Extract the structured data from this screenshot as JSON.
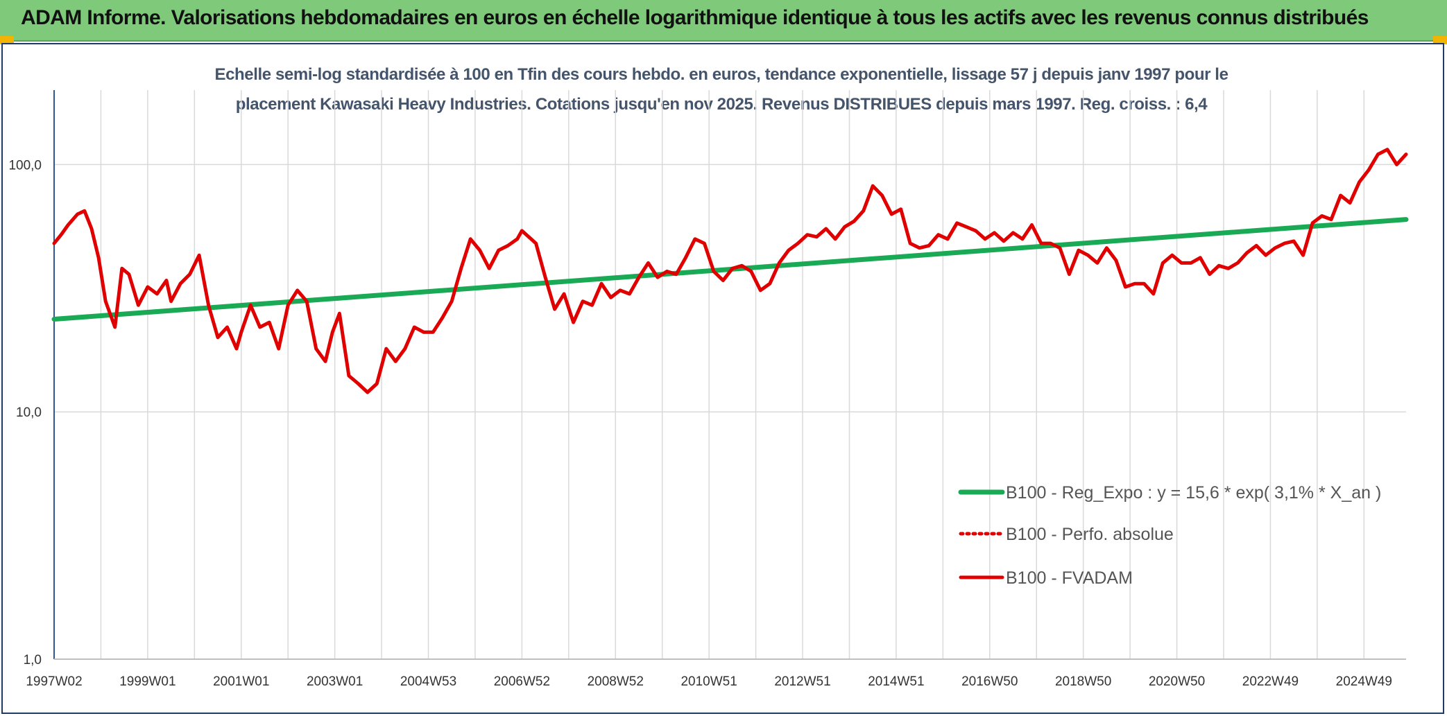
{
  "banner": {
    "title": "ADAM Informe. Valorisations hebdomadaires en euros en échelle logarithmique identique à tous les actifs avec les revenus connus distribués"
  },
  "chart_data": {
    "type": "line",
    "subtitle_line1": "Echelle semi-log standardisée à 100 en Tfin des cours hebdo. en euros, tendance exponentielle, lissage 57 j depuis janv 1997 pour le",
    "subtitle_line2": "placement Kawasaki Heavy Industries. Cotations jusqu'en nov 2025. Revenus DISTRIBUES depuis mars 1997. Reg. croiss. : 6,4",
    "y_scale": "log",
    "ylim": [
      1,
      200
    ],
    "y_ticks": [
      {
        "value": 1,
        "label": "1,0"
      },
      {
        "value": 10,
        "label": "10,0"
      },
      {
        "value": 100,
        "label": "100,0"
      }
    ],
    "xlim": [
      1997.0,
      2025.9
    ],
    "x_ticks": [
      {
        "value": 1997.0,
        "label": "1997W02"
      },
      {
        "value": 1999.0,
        "label": "1999W01"
      },
      {
        "value": 2001.0,
        "label": "2001W01"
      },
      {
        "value": 2003.0,
        "label": "2003W01"
      },
      {
        "value": 2005.0,
        "label": "2004W53"
      },
      {
        "value": 2007.0,
        "label": "2006W52"
      },
      {
        "value": 2009.0,
        "label": "2008W52"
      },
      {
        "value": 2011.0,
        "label": "2010W51"
      },
      {
        "value": 2013.0,
        "label": "2012W51"
      },
      {
        "value": 2015.0,
        "label": "2014W51"
      },
      {
        "value": 2017.0,
        "label": "2016W50"
      },
      {
        "value": 2019.0,
        "label": "2018W50"
      },
      {
        "value": 2021.0,
        "label": "2020W50"
      },
      {
        "value": 2023.0,
        "label": "2022W49"
      },
      {
        "value": 2025.0,
        "label": "2024W49"
      }
    ],
    "grid": true,
    "legend_position": "bottom-right",
    "series": [
      {
        "name": "B100 - Reg_Expo : y = 15,6 * exp( 3,1% *  X_an )",
        "color": "#1aaa55",
        "style": "solid",
        "x": [
          1997.0,
          2025.9
        ],
        "y": [
          23.7,
          60.0
        ]
      },
      {
        "name": "B100 - Perfo. absolue",
        "color": "#e00000",
        "style": "dotted",
        "x": [],
        "y": []
      },
      {
        "name": "B100 - FVADAM",
        "color": "#e00000",
        "style": "solid",
        "x": [
          1997.0,
          1997.15,
          1997.3,
          1997.5,
          1997.65,
          1997.8,
          1997.95,
          1998.1,
          1998.3,
          1998.45,
          1998.6,
          1998.8,
          1999.0,
          1999.2,
          1999.4,
          1999.5,
          1999.7,
          1999.9,
          2000.1,
          2000.3,
          2000.5,
          2000.7,
          2000.9,
          2001.0,
          2001.2,
          2001.4,
          2001.6,
          2001.8,
          2002.0,
          2002.2,
          2002.4,
          2002.6,
          2002.8,
          2002.95,
          2003.1,
          2003.3,
          2003.5,
          2003.7,
          2003.9,
          2004.1,
          2004.3,
          2004.5,
          2004.7,
          2004.9,
          2005.1,
          2005.3,
          2005.5,
          2005.7,
          2005.9,
          2006.1,
          2006.3,
          2006.5,
          2006.7,
          2006.9,
          2007.0,
          2007.3,
          2007.5,
          2007.7,
          2007.9,
          2008.1,
          2008.3,
          2008.5,
          2008.7,
          2008.9,
          2009.1,
          2009.3,
          2009.5,
          2009.7,
          2009.9,
          2010.1,
          2010.3,
          2010.5,
          2010.7,
          2010.9,
          2011.1,
          2011.3,
          2011.5,
          2011.7,
          2011.9,
          2012.1,
          2012.3,
          2012.5,
          2012.7,
          2012.9,
          2013.1,
          2013.3,
          2013.5,
          2013.7,
          2013.9,
          2014.1,
          2014.3,
          2014.5,
          2014.7,
          2014.9,
          2015.1,
          2015.3,
          2015.5,
          2015.7,
          2015.9,
          2016.1,
          2016.3,
          2016.5,
          2016.7,
          2016.9,
          2017.1,
          2017.3,
          2017.5,
          2017.7,
          2017.9,
          2018.1,
          2018.3,
          2018.5,
          2018.7,
          2018.9,
          2019.1,
          2019.3,
          2019.5,
          2019.7,
          2019.9,
          2020.1,
          2020.3,
          2020.5,
          2020.7,
          2020.9,
          2021.1,
          2021.3,
          2021.5,
          2021.7,
          2021.9,
          2022.1,
          2022.3,
          2022.5,
          2022.7,
          2022.9,
          2023.1,
          2023.3,
          2023.5,
          2023.7,
          2023.9,
          2024.1,
          2024.3,
          2024.5,
          2024.7,
          2024.9,
          2025.1,
          2025.3,
          2025.5,
          2025.7,
          2025.9
        ],
        "y": [
          48,
          52,
          57,
          63,
          65,
          55,
          42,
          28,
          22,
          38,
          36,
          27,
          32,
          30,
          34,
          28,
          33,
          36,
          43,
          27,
          20,
          22,
          18,
          21,
          27,
          22,
          23,
          18,
          27,
          31,
          28,
          18,
          16,
          21,
          25,
          14,
          13,
          12,
          13,
          18,
          16,
          18,
          22,
          21,
          21,
          24,
          28,
          38,
          50,
          45,
          38,
          45,
          47,
          50,
          54,
          48,
          35,
          26,
          30,
          23,
          28,
          27,
          33,
          29,
          31,
          30,
          35,
          40,
          35,
          37,
          36,
          42,
          50,
          48,
          37,
          34,
          38,
          39,
          37,
          31,
          33,
          40,
          45,
          48,
          52,
          51,
          55,
          50,
          56,
          59,
          65,
          82,
          75,
          63,
          66,
          48,
          46,
          47,
          52,
          50,
          58,
          56,
          54,
          50,
          53,
          49,
          53,
          50,
          57,
          48,
          48,
          46,
          36,
          45,
          43,
          40,
          46,
          41,
          32,
          33,
          33,
          30,
          40,
          43,
          40,
          40,
          42,
          36,
          39,
          38,
          40,
          44,
          47,
          43,
          46,
          48,
          49,
          43,
          58,
          62,
          60,
          75,
          70,
          85,
          95,
          110,
          115,
          100,
          110
        ]
      }
    ]
  }
}
